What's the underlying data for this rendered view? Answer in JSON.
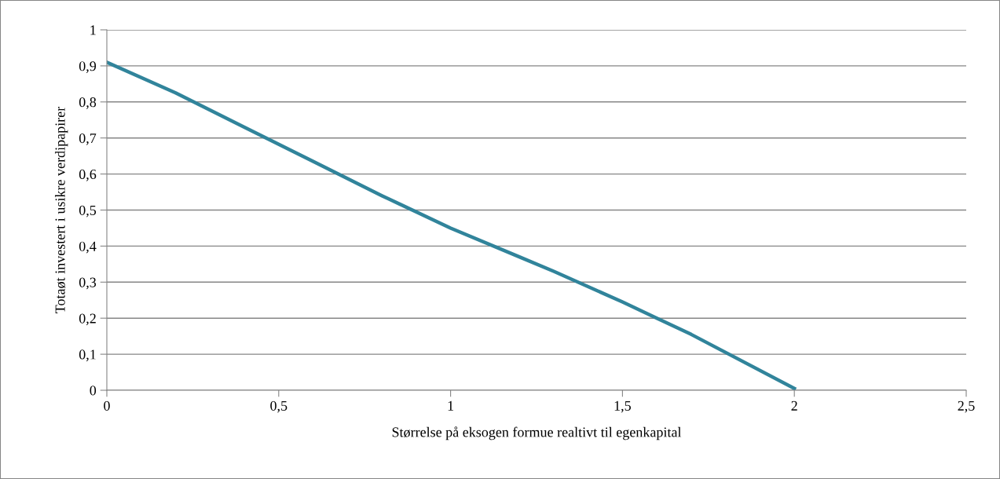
{
  "chart_data": {
    "type": "line",
    "xlabel": "Størrelse på eksogen formue realtivt til egenkapital",
    "ylabel": "Totaøt investert i usikre verdipapirer",
    "x": [
      0,
      0.2,
      0.4,
      0.6,
      0.8,
      1.0,
      1.2,
      1.3,
      1.5,
      1.6,
      1.7,
      2.0
    ],
    "series": [
      {
        "color": "#31849b",
        "values": [
          0.91,
          0.825,
          0.73,
          0.635,
          0.54,
          0.45,
          0.37,
          0.33,
          0.245,
          0.2,
          0.155,
          0.005
        ]
      }
    ],
    "xlim": [
      0,
      2.5
    ],
    "xticks": [
      0,
      {
        "value": 0.5,
        "label": "0,5"
      },
      1,
      {
        "value": 1.5,
        "label": "1,5"
      },
      2,
      {
        "value": 2.5,
        "label": "2,5"
      }
    ],
    "ylim": [
      0,
      1
    ],
    "yticks": [
      0,
      {
        "value": 0.1,
        "label": "0,1"
      },
      {
        "value": 0.2,
        "label": "0,2"
      },
      {
        "value": 0.3,
        "label": "0,3"
      },
      {
        "value": 0.4,
        "label": "0,4"
      },
      {
        "value": 0.5,
        "label": "0,5"
      },
      {
        "value": 0.6,
        "label": "0,6"
      },
      {
        "value": 0.7,
        "label": "0,7"
      },
      {
        "value": 0.8,
        "label": "0,8"
      },
      {
        "value": 0.9,
        "label": "0,9"
      },
      1
    ],
    "grid": "y",
    "marker": "none",
    "line_style": "solid"
  }
}
